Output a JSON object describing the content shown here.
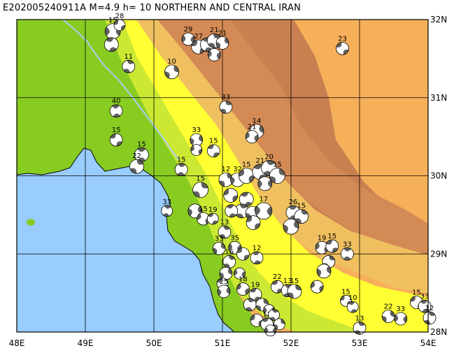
{
  "title": "E202005240911A M=4.9 h= 10 NORTHERN AND CENTRAL IRAN",
  "axes": {
    "lon_min": 48,
    "lon_max": 54,
    "lat_min": 28,
    "lat_max": 32,
    "x_ticks": [
      "48E",
      "49E",
      "50E",
      "51E",
      "52E",
      "53E",
      "54E"
    ],
    "y_ticks": [
      "28N",
      "29N",
      "30N",
      "31N",
      "32N"
    ]
  },
  "colors": {
    "sea": "#99ccff",
    "lowland": "#88cc22",
    "plain": "#cce833",
    "coast_yellow": "#ffff33",
    "foothill": "#f0c060",
    "mountain_light": "#e6a86a",
    "mountain": "#d48a55",
    "mountain_dark": "#c98050",
    "highland": "#f7b05a",
    "beachball_dark": "#606060",
    "border": "#aaccee"
  },
  "events": [
    {
      "lon": 49.4,
      "lat": 31.85,
      "depth": "15",
      "size": 11
    },
    {
      "lon": 49.5,
      "lat": 31.93,
      "depth": "28",
      "size": 8
    },
    {
      "lon": 49.38,
      "lat": 31.68,
      "depth": "",
      "size": 10
    },
    {
      "lon": 49.63,
      "lat": 31.4,
      "depth": "11",
      "size": 9
    },
    {
      "lon": 50.26,
      "lat": 31.33,
      "depth": "10",
      "size": 10
    },
    {
      "lon": 50.5,
      "lat": 31.75,
      "depth": "29",
      "size": 9
    },
    {
      "lon": 50.65,
      "lat": 31.65,
      "depth": "27",
      "size": 10
    },
    {
      "lon": 50.78,
      "lat": 31.68,
      "depth": "",
      "size": 10
    },
    {
      "lon": 50.88,
      "lat": 31.73,
      "depth": "21",
      "size": 10
    },
    {
      "lon": 51.0,
      "lat": 31.7,
      "depth": "21",
      "size": 9
    },
    {
      "lon": 50.88,
      "lat": 31.55,
      "depth": "",
      "size": 9
    },
    {
      "lon": 52.75,
      "lat": 31.63,
      "depth": "23",
      "size": 9
    },
    {
      "lon": 49.45,
      "lat": 30.83,
      "depth": "40",
      "size": 9
    },
    {
      "lon": 51.05,
      "lat": 30.88,
      "depth": "33",
      "size": 9
    },
    {
      "lon": 51.5,
      "lat": 30.57,
      "depth": "14",
      "size": 10
    },
    {
      "lon": 51.43,
      "lat": 30.5,
      "depth": "21",
      "size": 9
    },
    {
      "lon": 49.45,
      "lat": 30.46,
      "depth": "15",
      "size": 9
    },
    {
      "lon": 49.82,
      "lat": 30.27,
      "depth": "15",
      "size": 10
    },
    {
      "lon": 49.75,
      "lat": 30.12,
      "depth": "22",
      "size": 10
    },
    {
      "lon": 50.62,
      "lat": 30.46,
      "depth": "33",
      "size": 9
    },
    {
      "lon": 50.62,
      "lat": 30.33,
      "depth": "",
      "size": 8
    },
    {
      "lon": 50.87,
      "lat": 30.32,
      "depth": "15",
      "size": 9
    },
    {
      "lon": 50.4,
      "lat": 30.08,
      "depth": "15",
      "size": 9
    },
    {
      "lon": 50.68,
      "lat": 29.82,
      "depth": "15",
      "size": 11
    },
    {
      "lon": 50.6,
      "lat": 29.55,
      "depth": "",
      "size": 10
    },
    {
      "lon": 50.72,
      "lat": 29.45,
      "depth": "15",
      "size": 9
    },
    {
      "lon": 50.86,
      "lat": 29.45,
      "depth": "19",
      "size": 8
    },
    {
      "lon": 50.19,
      "lat": 29.55,
      "depth": "33",
      "size": 8
    },
    {
      "lon": 51.05,
      "lat": 29.95,
      "depth": "12",
      "size": 10
    },
    {
      "lon": 51.22,
      "lat": 29.95,
      "depth": "32",
      "size": 10
    },
    {
      "lon": 51.35,
      "lat": 30.0,
      "depth": "15",
      "size": 11
    },
    {
      "lon": 51.55,
      "lat": 30.05,
      "depth": "21",
      "size": 11
    },
    {
      "lon": 51.68,
      "lat": 30.1,
      "depth": "20",
      "size": 11
    },
    {
      "lon": 51.8,
      "lat": 30.0,
      "depth": "15",
      "size": 11
    },
    {
      "lon": 51.62,
      "lat": 29.9,
      "depth": "",
      "size": 10
    },
    {
      "lon": 51.12,
      "lat": 29.75,
      "depth": "",
      "size": 10
    },
    {
      "lon": 51.35,
      "lat": 29.7,
      "depth": "",
      "size": 10
    },
    {
      "lon": 51.28,
      "lat": 29.55,
      "depth": "",
      "size": 10
    },
    {
      "lon": 51.44,
      "lat": 29.52,
      "depth": "",
      "size": 10
    },
    {
      "lon": 51.6,
      "lat": 29.55,
      "depth": "17",
      "size": 12
    },
    {
      "lon": 51.45,
      "lat": 29.4,
      "depth": "",
      "size": 10
    },
    {
      "lon": 51.13,
      "lat": 29.55,
      "depth": "",
      "size": 9
    },
    {
      "lon": 51.03,
      "lat": 29.28,
      "depth": "13",
      "size": 9
    },
    {
      "lon": 50.95,
      "lat": 29.07,
      "depth": "33",
      "size": 9
    },
    {
      "lon": 51.18,
      "lat": 29.08,
      "depth": "35",
      "size": 9
    },
    {
      "lon": 51.3,
      "lat": 29.0,
      "depth": "",
      "size": 9
    },
    {
      "lon": 51.5,
      "lat": 28.95,
      "depth": "12",
      "size": 9
    },
    {
      "lon": 51.1,
      "lat": 28.9,
      "depth": "16",
      "size": 9
    },
    {
      "lon": 51.05,
      "lat": 28.75,
      "depth": "",
      "size": 9
    },
    {
      "lon": 51.25,
      "lat": 28.75,
      "depth": "",
      "size": 8
    },
    {
      "lon": 51.0,
      "lat": 28.62,
      "depth": "",
      "size": 8
    },
    {
      "lon": 52.03,
      "lat": 29.53,
      "depth": "26",
      "size": 10
    },
    {
      "lon": 52.15,
      "lat": 29.48,
      "depth": "15",
      "size": 10
    },
    {
      "lon": 52.0,
      "lat": 29.35,
      "depth": "",
      "size": 11
    },
    {
      "lon": 52.45,
      "lat": 29.08,
      "depth": "19",
      "size": 9
    },
    {
      "lon": 52.6,
      "lat": 29.1,
      "depth": "15",
      "size": 9
    },
    {
      "lon": 52.82,
      "lat": 29.0,
      "depth": "33",
      "size": 9
    },
    {
      "lon": 52.55,
      "lat": 28.9,
      "depth": "",
      "size": 9
    },
    {
      "lon": 52.48,
      "lat": 28.78,
      "depth": "",
      "size": 10
    },
    {
      "lon": 52.38,
      "lat": 28.58,
      "depth": "",
      "size": 9
    },
    {
      "lon": 51.8,
      "lat": 28.58,
      "depth": "22",
      "size": 9
    },
    {
      "lon": 51.95,
      "lat": 28.53,
      "depth": "13",
      "size": 9
    },
    {
      "lon": 52.05,
      "lat": 28.52,
      "depth": "15",
      "size": 10
    },
    {
      "lon": 51.02,
      "lat": 28.52,
      "depth": "25",
      "size": 9
    },
    {
      "lon": 51.3,
      "lat": 28.55,
      "depth": "18",
      "size": 9
    },
    {
      "lon": 51.48,
      "lat": 28.48,
      "depth": "19",
      "size": 9
    },
    {
      "lon": 51.4,
      "lat": 28.35,
      "depth": "",
      "size": 9
    },
    {
      "lon": 51.58,
      "lat": 28.35,
      "depth": "",
      "size": 9
    },
    {
      "lon": 51.68,
      "lat": 28.28,
      "depth": "",
      "size": 8
    },
    {
      "lon": 51.5,
      "lat": 28.15,
      "depth": "",
      "size": 9
    },
    {
      "lon": 51.65,
      "lat": 28.1,
      "depth": "12",
      "size": 9
    },
    {
      "lon": 51.75,
      "lat": 28.22,
      "depth": "",
      "size": 8
    },
    {
      "lon": 51.83,
      "lat": 28.1,
      "depth": "",
      "size": 8
    },
    {
      "lon": 51.7,
      "lat": 28.02,
      "depth": "",
      "size": 8
    },
    {
      "lon": 52.8,
      "lat": 28.4,
      "depth": "15",
      "size": 8
    },
    {
      "lon": 52.9,
      "lat": 28.32,
      "depth": "10",
      "size": 8
    },
    {
      "lon": 53.0,
      "lat": 28.05,
      "depth": "13",
      "size": 9
    },
    {
      "lon": 53.42,
      "lat": 28.2,
      "depth": "22",
      "size": 9
    },
    {
      "lon": 53.6,
      "lat": 28.17,
      "depth": "33",
      "size": 9
    },
    {
      "lon": 53.83,
      "lat": 28.38,
      "depth": "15",
      "size": 9
    },
    {
      "lon": 53.95,
      "lat": 28.33,
      "depth": "33",
      "size": 9
    },
    {
      "lon": 54.02,
      "lat": 28.18,
      "depth": "12",
      "size": 9
    }
  ]
}
